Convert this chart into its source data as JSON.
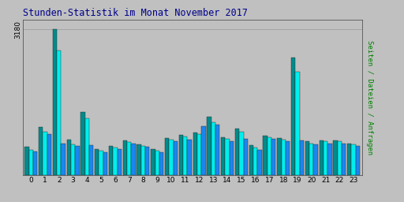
{
  "title": "Stunden-Statistik im Monat November 2017",
  "ylabel": "Seiten / Dateien / Anfragen",
  "xlabel_ticks": [
    "0",
    "1",
    "2",
    "3",
    "4",
    "5",
    "6",
    "7",
    "8",
    "9",
    "10",
    "11",
    "12",
    "13",
    "14",
    "15",
    "16",
    "17",
    "18",
    "19",
    "20",
    "21",
    "22",
    "23"
  ],
  "ytick_label": "3180",
  "colors": [
    "#008B8B",
    "#00EEEE",
    "#1C86EE"
  ],
  "background_color": "#C0C0C0",
  "plot_bg_color": "#C0C0C0",
  "title_color": "#00008B",
  "ylabel_color": "#008000",
  "series1": [
    620,
    1050,
    3180,
    780,
    1380,
    580,
    650,
    760,
    680,
    580,
    820,
    880,
    940,
    1280,
    840,
    1020,
    660,
    860,
    820,
    2560,
    740,
    770,
    770,
    700
  ],
  "series2": [
    560,
    960,
    2720,
    680,
    1250,
    540,
    610,
    720,
    650,
    540,
    780,
    850,
    900,
    1150,
    790,
    960,
    600,
    840,
    780,
    2260,
    700,
    740,
    740,
    680
  ],
  "series3": [
    530,
    900,
    700,
    640,
    660,
    510,
    580,
    700,
    630,
    500,
    750,
    780,
    1080,
    1100,
    740,
    800,
    560,
    790,
    750,
    760,
    670,
    700,
    690,
    640
  ]
}
